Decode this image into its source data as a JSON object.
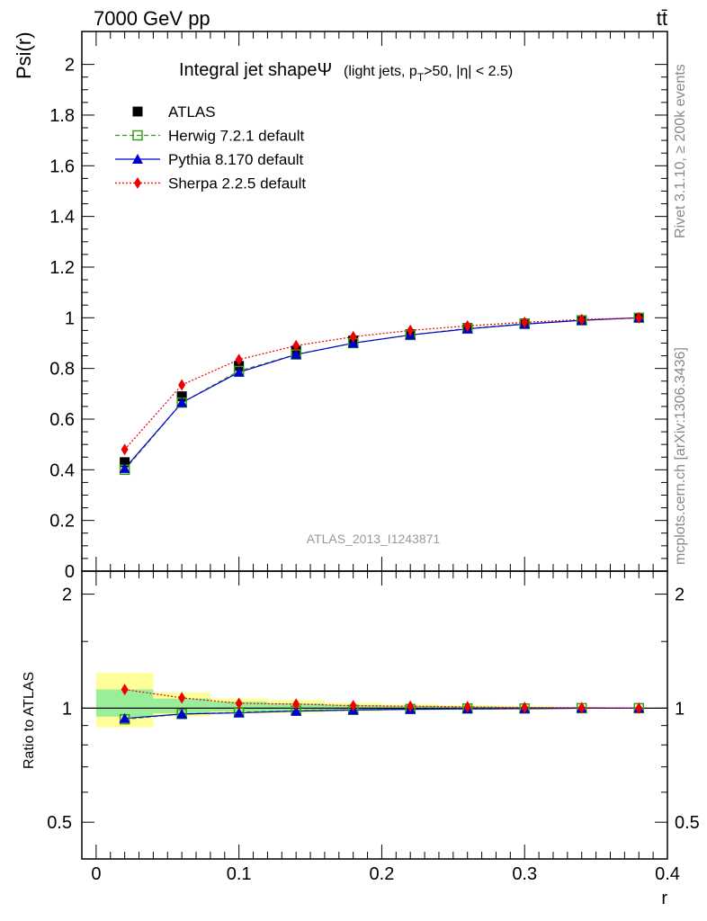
{
  "header": {
    "energy_label": "7000 GeV pp",
    "process_label": "tt̄",
    "rivet_label": "Rivet 3.1.10, ≥ 200k events",
    "mcplots_label": "mcplots.cern.ch [arXiv:1306.3436]",
    "analysis_id": "ATLAS_2013_I1243871"
  },
  "colors": {
    "atlas": "#000000",
    "herwig": "#3a9a1a",
    "pythia": "#0000cc",
    "sherpa": "#ee0000",
    "band_inner": "#99ee99",
    "band_outer": "#ffff99"
  },
  "chart_data": [
    {
      "type": "line",
      "title": "Integral jet shape",
      "title_symbol": "Ψ",
      "title_sub": "(light jets, p",
      "title_sub_T": "T",
      "title_sub_rest": ">50, |η| < 2.5)",
      "ylabel": "Psi(r)",
      "xlim": [
        -0.01,
        0.4
      ],
      "ylim": [
        0,
        2.13
      ],
      "yticks": [
        0,
        0.2,
        0.4,
        0.6,
        0.8,
        1,
        1.2,
        1.4,
        1.6,
        1.8,
        2
      ],
      "ytick_labels": [
        "0",
        "0.2",
        "0.4",
        "0.6",
        "0.8",
        "1",
        "1.2",
        "1.4",
        "1.6",
        "1.8",
        "2"
      ],
      "legend_position": "top-left",
      "x": [
        0.02,
        0.06,
        0.1,
        0.14,
        0.18,
        0.22,
        0.26,
        0.3,
        0.34,
        0.38
      ],
      "series": [
        {
          "name": "ATLAS",
          "key": "atlas",
          "values": [
            0.43,
            0.69,
            0.81,
            0.87,
            0.91,
            0.935,
            0.96,
            0.978,
            0.99,
            1.0
          ]
        },
        {
          "name": "Herwig 7.2.1 default",
          "key": "herwig",
          "values": [
            0.4,
            0.665,
            0.79,
            0.855,
            0.9,
            0.932,
            0.958,
            0.976,
            0.99,
            1.0
          ]
        },
        {
          "name": "Pythia 8.170 default",
          "key": "pythia",
          "values": [
            0.405,
            0.665,
            0.785,
            0.855,
            0.9,
            0.932,
            0.956,
            0.975,
            0.99,
            1.0
          ]
        },
        {
          "name": "Sherpa 2.2.5 default",
          "key": "sherpa",
          "values": [
            0.48,
            0.735,
            0.835,
            0.89,
            0.925,
            0.95,
            0.968,
            0.982,
            0.993,
            1.0
          ]
        }
      ]
    },
    {
      "type": "line",
      "ylabel": "Ratio to ATLAS",
      "xlabel": "r",
      "xlim": [
        -0.01,
        0.4
      ],
      "ylim": [
        0.4,
        2.3
      ],
      "yscale": "log",
      "yticks": [
        0.5,
        1,
        2
      ],
      "ytick_labels": [
        "0.5",
        "1",
        "2"
      ],
      "xticks": [
        0,
        0.1,
        0.2,
        0.3,
        0.4
      ],
      "xtick_labels": [
        "0",
        "0.1",
        "0.2",
        "0.3",
        "0.4"
      ],
      "x": [
        0.02,
        0.06,
        0.1,
        0.14,
        0.18,
        0.22,
        0.26,
        0.3,
        0.34,
        0.38
      ],
      "bin_edges": [
        0,
        0.04,
        0.08,
        0.12,
        0.16,
        0.2,
        0.24,
        0.28,
        0.32,
        0.36,
        0.4
      ],
      "band_inner": [
        [
          0.95,
          1.12
        ],
        [
          0.97,
          1.06
        ],
        [
          0.98,
          1.04
        ],
        [
          0.98,
          1.03
        ],
        [
          0.985,
          1.02
        ],
        [
          0.99,
          1.015
        ],
        [
          0.99,
          1.01
        ],
        [
          0.995,
          1.008
        ],
        [
          0.997,
          1.005
        ],
        [
          0.998,
          1.002
        ]
      ],
      "band_outer": [
        [
          0.89,
          1.24
        ],
        [
          0.95,
          1.1
        ],
        [
          0.97,
          1.06
        ],
        [
          0.97,
          1.05
        ],
        [
          0.98,
          1.035
        ],
        [
          0.985,
          1.025
        ],
        [
          0.99,
          1.02
        ],
        [
          0.99,
          1.015
        ],
        [
          0.995,
          1.008
        ],
        [
          0.997,
          1.003
        ]
      ],
      "series": [
        {
          "name": "Herwig 7.2.1 default",
          "key": "herwig",
          "values": [
            0.935,
            0.965,
            0.975,
            0.985,
            0.99,
            0.995,
            0.998,
            0.998,
            1.0,
            1.0
          ]
        },
        {
          "name": "Pythia 8.170 default",
          "key": "pythia",
          "values": [
            0.94,
            0.965,
            0.972,
            0.982,
            0.989,
            0.993,
            0.996,
            0.997,
            1.0,
            1.0
          ]
        },
        {
          "name": "Sherpa 2.2.5 default",
          "key": "sherpa",
          "values": [
            1.12,
            1.065,
            1.03,
            1.025,
            1.015,
            1.012,
            1.008,
            1.004,
            1.003,
            1.0
          ]
        }
      ]
    }
  ]
}
